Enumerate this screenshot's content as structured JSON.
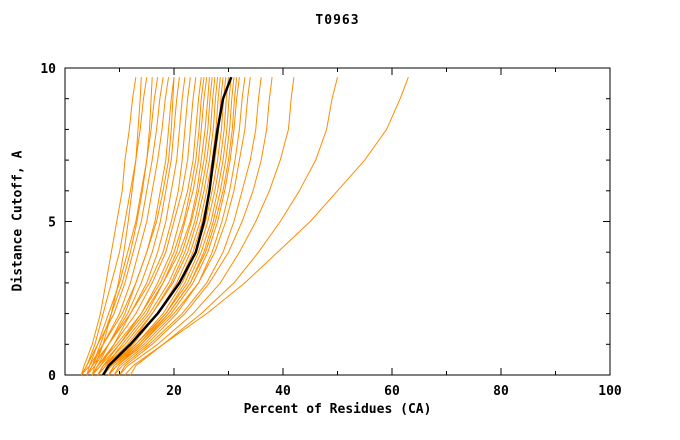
{
  "chart_data": {
    "type": "line",
    "title": "T0963",
    "xlabel": "Percent of Residues (CA)",
    "ylabel": "Distance Cutoff, A",
    "xlim": [
      0,
      100
    ],
    "ylim": [
      0,
      10
    ],
    "xticks": [
      0,
      20,
      40,
      60,
      80,
      100
    ],
    "yticks": [
      0,
      5,
      10
    ],
    "x_minor_step": 10,
    "y_minor_step": 1,
    "grid": false,
    "legend": "none",
    "colors": {
      "model": "#FF8C00",
      "highlight": "#000000",
      "axis": "#000000"
    },
    "y_levels": [
      0,
      0.3,
      1,
      2,
      3,
      4,
      5,
      6,
      7,
      8,
      9,
      9.7
    ],
    "series": [
      {
        "name": "model-01",
        "x": [
          3,
          3.5,
          5,
          6.5,
          7.5,
          8.5,
          9.5,
          10.5,
          11,
          11.8,
          12.4,
          13
        ]
      },
      {
        "name": "model-02",
        "x": [
          3,
          4,
          5.5,
          7,
          8.5,
          10,
          11,
          12,
          13,
          13.8,
          14.4,
          15
        ]
      },
      {
        "name": "model-03",
        "x": [
          4,
          4.5,
          6,
          8,
          10,
          11.5,
          13,
          14,
          15,
          15.8,
          16.4,
          17
        ]
      },
      {
        "name": "model-04",
        "x": [
          3,
          4,
          6,
          9,
          11,
          12.5,
          14,
          15,
          16,
          16.8,
          17.4,
          18
        ]
      },
      {
        "name": "model-05",
        "x": [
          4,
          5,
          7,
          10,
          12,
          13.5,
          15,
          16,
          17,
          17.8,
          18.4,
          19
        ]
      },
      {
        "name": "model-06",
        "x": [
          5,
          6,
          8,
          11,
          13,
          15,
          16.5,
          17.5,
          18.5,
          19,
          19.5,
          20
        ]
      },
      {
        "name": "model-07",
        "x": [
          4,
          5.5,
          8,
          11.5,
          14,
          16,
          17.5,
          18.5,
          19.5,
          20,
          20.5,
          21
        ]
      },
      {
        "name": "model-08",
        "x": [
          5,
          6,
          9,
          12,
          15,
          17,
          18.5,
          19.5,
          20.5,
          21,
          21.5,
          22
        ]
      },
      {
        "name": "model-09",
        "x": [
          4,
          5,
          8,
          12,
          15.5,
          18,
          19.5,
          20.8,
          21.5,
          22,
          22.5,
          23
        ]
      },
      {
        "name": "model-10",
        "x": [
          5,
          6.5,
          9,
          13,
          16,
          18.5,
          20,
          21.5,
          22.5,
          23,
          23.5,
          24
        ]
      },
      {
        "name": "model-11",
        "x": [
          6,
          7,
          10,
          14,
          17,
          19.5,
          21,
          22.5,
          23.5,
          24,
          24.5,
          25
        ]
      },
      {
        "name": "model-12",
        "x": [
          5,
          6,
          9.5,
          14,
          17.5,
          20,
          21.8,
          23,
          24,
          24.6,
          25,
          25.5
        ]
      },
      {
        "name": "model-13",
        "x": [
          6,
          7.5,
          10.5,
          15,
          18,
          20.5,
          22,
          23.5,
          24.5,
          25,
          25.5,
          26
        ]
      },
      {
        "name": "model-14",
        "x": [
          5,
          6.5,
          10,
          14.5,
          18,
          21,
          23,
          24.2,
          25,
          25.7,
          26.2,
          26.5
        ]
      },
      {
        "name": "model-15",
        "x": [
          6,
          7,
          11,
          15.5,
          19,
          21.5,
          23.2,
          24.5,
          25.5,
          26.2,
          26.6,
          27
        ]
      },
      {
        "name": "model-16",
        "x": [
          7,
          8,
          12,
          16,
          19.5,
          22,
          23.8,
          25,
          26,
          26.7,
          27.1,
          27.5
        ]
      },
      {
        "name": "model-17",
        "x": [
          6,
          7.5,
          11.5,
          16,
          19.8,
          22.5,
          24.2,
          25.5,
          26.5,
          27.2,
          27.6,
          28
        ]
      },
      {
        "name": "model-18",
        "x": [
          7,
          8.5,
          12.5,
          17,
          20.5,
          23,
          24.8,
          26,
          27,
          27.7,
          28.1,
          28.5
        ]
      },
      {
        "name": "model-19",
        "x": [
          6,
          7,
          12,
          17,
          21,
          23.5,
          25.2,
          26.5,
          27.5,
          28.2,
          28.6,
          29
        ]
      },
      {
        "name": "model-20",
        "x": [
          7,
          8.5,
          13,
          18,
          21.5,
          24,
          25.8,
          27,
          28,
          28.7,
          29.1,
          29.5
        ]
      },
      {
        "name": "model-21",
        "x": [
          8,
          9,
          13.5,
          18.5,
          22,
          24.5,
          26.2,
          27.5,
          28.5,
          29.2,
          29.6,
          30
        ]
      },
      {
        "name": "model-22",
        "x": [
          7,
          8,
          13,
          18.5,
          22.5,
          25,
          26.8,
          28,
          29,
          29.7,
          30.1,
          30.5
        ]
      },
      {
        "name": "model-23",
        "x": [
          8,
          9.5,
          14,
          19,
          23,
          25.5,
          27.2,
          28.5,
          29.5,
          30.2,
          30.6,
          31
        ]
      },
      {
        "name": "model-24",
        "x": [
          7,
          8.5,
          13.5,
          19,
          23,
          25.8,
          27.6,
          29,
          30,
          30.7,
          31.1,
          31.5
        ]
      },
      {
        "name": "model-25",
        "x": [
          8,
          9,
          14,
          19.5,
          23.5,
          26.2,
          28,
          29.3,
          30.3,
          31,
          31.5,
          32
        ]
      },
      {
        "name": "model-26",
        "x": [
          9,
          10,
          15,
          20.5,
          24.5,
          27,
          28.8,
          30.2,
          31.2,
          32,
          32.5,
          33
        ]
      },
      {
        "name": "model-27",
        "x": [
          8,
          9.5,
          14.5,
          20,
          24.5,
          27.5,
          29.5,
          31,
          32,
          33,
          33.5,
          34
        ]
      },
      {
        "name": "model-28",
        "x": [
          9,
          10.5,
          15.5,
          21.5,
          26,
          29,
          31,
          32.5,
          34,
          35,
          35.5,
          36
        ]
      },
      {
        "name": "model-29",
        "x": [
          10,
          11,
          16,
          22,
          26.5,
          30,
          32.5,
          34.5,
          36,
          37,
          37.5,
          38
        ]
      },
      {
        "name": "model-30",
        "x": [
          10,
          11.5,
          17,
          23.5,
          28.5,
          32,
          35,
          37.5,
          39.5,
          41,
          41.5,
          42
        ]
      },
      {
        "name": "model-31",
        "x": [
          12,
          13,
          18,
          25,
          31,
          35.5,
          39.5,
          43,
          46,
          48,
          49,
          50
        ]
      },
      {
        "name": "model-32",
        "x": [
          11,
          12.5,
          18,
          26,
          33,
          39,
          45,
          50,
          55,
          59,
          61.5,
          63
        ]
      },
      {
        "name": "model-33",
        "x": [
          4,
          5,
          6.5,
          8.5,
          10.5,
          12,
          13.2,
          14.2,
          15,
          15.5,
          15.8,
          16
        ]
      },
      {
        "name": "model-34",
        "x": [
          3,
          4.5,
          7,
          10.5,
          13,
          15,
          16.8,
          18,
          19,
          19.5,
          19.8,
          20
        ]
      },
      {
        "name": "model-35",
        "x": [
          5,
          5.5,
          7,
          8.5,
          9.8,
          10.8,
          11.6,
          12.3,
          13,
          13.4,
          13.8,
          14
        ]
      }
    ],
    "highlight": {
      "name": "best-model",
      "x": [
        7,
        8,
        12,
        17,
        21,
        24,
        25.5,
        26.5,
        27.2,
        28,
        29,
        30.5
      ]
    }
  }
}
